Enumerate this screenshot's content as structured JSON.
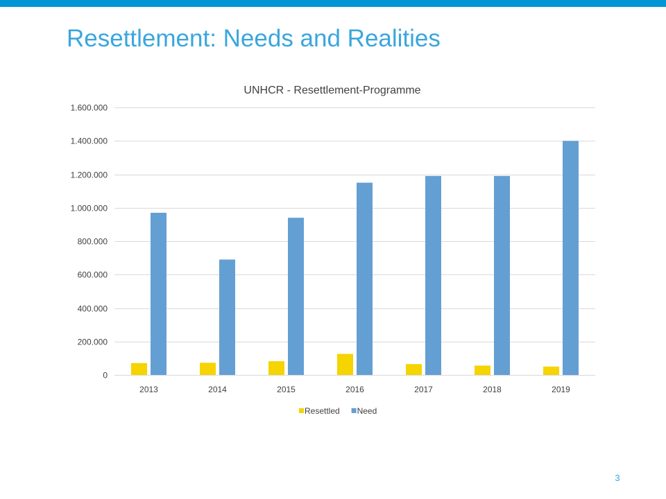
{
  "slide": {
    "title": "Resettlement: Needs and Realities",
    "page_number": "3"
  },
  "colors": {
    "top_bar": "#0096d6",
    "title": "#3aa6dd",
    "resettled": "#f5d400",
    "need": "#649fd3",
    "grid": "#d9d9d9",
    "text": "#404040"
  },
  "chart_data": {
    "type": "bar",
    "title": "UNHCR - Resettlement-Programme",
    "xlabel": "",
    "ylabel": "",
    "categories": [
      "2013",
      "2014",
      "2015",
      "2016",
      "2017",
      "2018",
      "2019"
    ],
    "series": [
      {
        "name": "Resettled",
        "values": [
          71000,
          73000,
          82000,
          126000,
          65000,
          56000,
          50000
        ]
      },
      {
        "name": "Need",
        "values": [
          970000,
          690000,
          940000,
          1150000,
          1190000,
          1190000,
          1400000
        ]
      }
    ],
    "ylim": [
      0,
      1600000
    ],
    "yticks": [
      0,
      200000,
      400000,
      600000,
      800000,
      1000000,
      1200000,
      1400000,
      1600000
    ],
    "ytick_labels": [
      "0",
      "200.000",
      "400.000",
      "600.000",
      "800.000",
      "1.000.000",
      "1.200.000",
      "1.400.000",
      "1.600.000"
    ],
    "grid": true,
    "legend_position": "bottom"
  }
}
